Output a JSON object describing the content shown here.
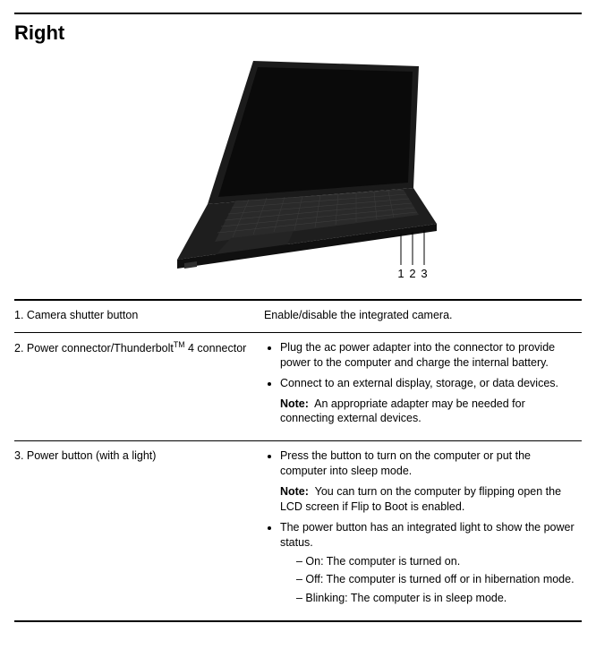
{
  "heading": "Right",
  "illustration": {
    "callouts": [
      "1",
      "2",
      "3"
    ]
  },
  "rows": [
    {
      "label_html": "1. Camera shutter button",
      "desc_html": "Enable/disable the integrated camera."
    },
    {
      "label_html": "2. Power connector/Thunderbolt<sup>TM</sup> 4 connector",
      "desc_html": "<ul class=\"top\"><li>Plug the ac power adapter into the connector to provide power to the computer and charge the internal battery.</li><li>Connect to an external display, storage, or data devices.<div class=\"note\"><b>Note:</b>&nbsp; An appropriate adapter may be needed for connecting external devices.</div></li></ul>"
    },
    {
      "label_html": "3. Power button (with a light)",
      "desc_html": "<ul class=\"top\"><li>Press the button to turn on the computer or put the computer into sleep mode.<div class=\"note\"><b>Note:</b>&nbsp; You can turn on the computer by flipping open the LCD screen if Flip to Boot is enabled.</div></li><li>The power button has an integrated light to show the power status.<ul class=\"sub\"><li>On: The computer is turned on.</li><li>Off: The computer is turned off or in hibernation mode.</li><li>Blinking: The computer is in sleep mode.</li></ul></li></ul>"
    }
  ],
  "colors": {
    "rule": "#000000",
    "text": "#000000",
    "laptop_body": "#1b1b1b",
    "laptop_screen": "#0a0a0a",
    "laptop_kb": "#272727",
    "callout_text": "#000000"
  }
}
